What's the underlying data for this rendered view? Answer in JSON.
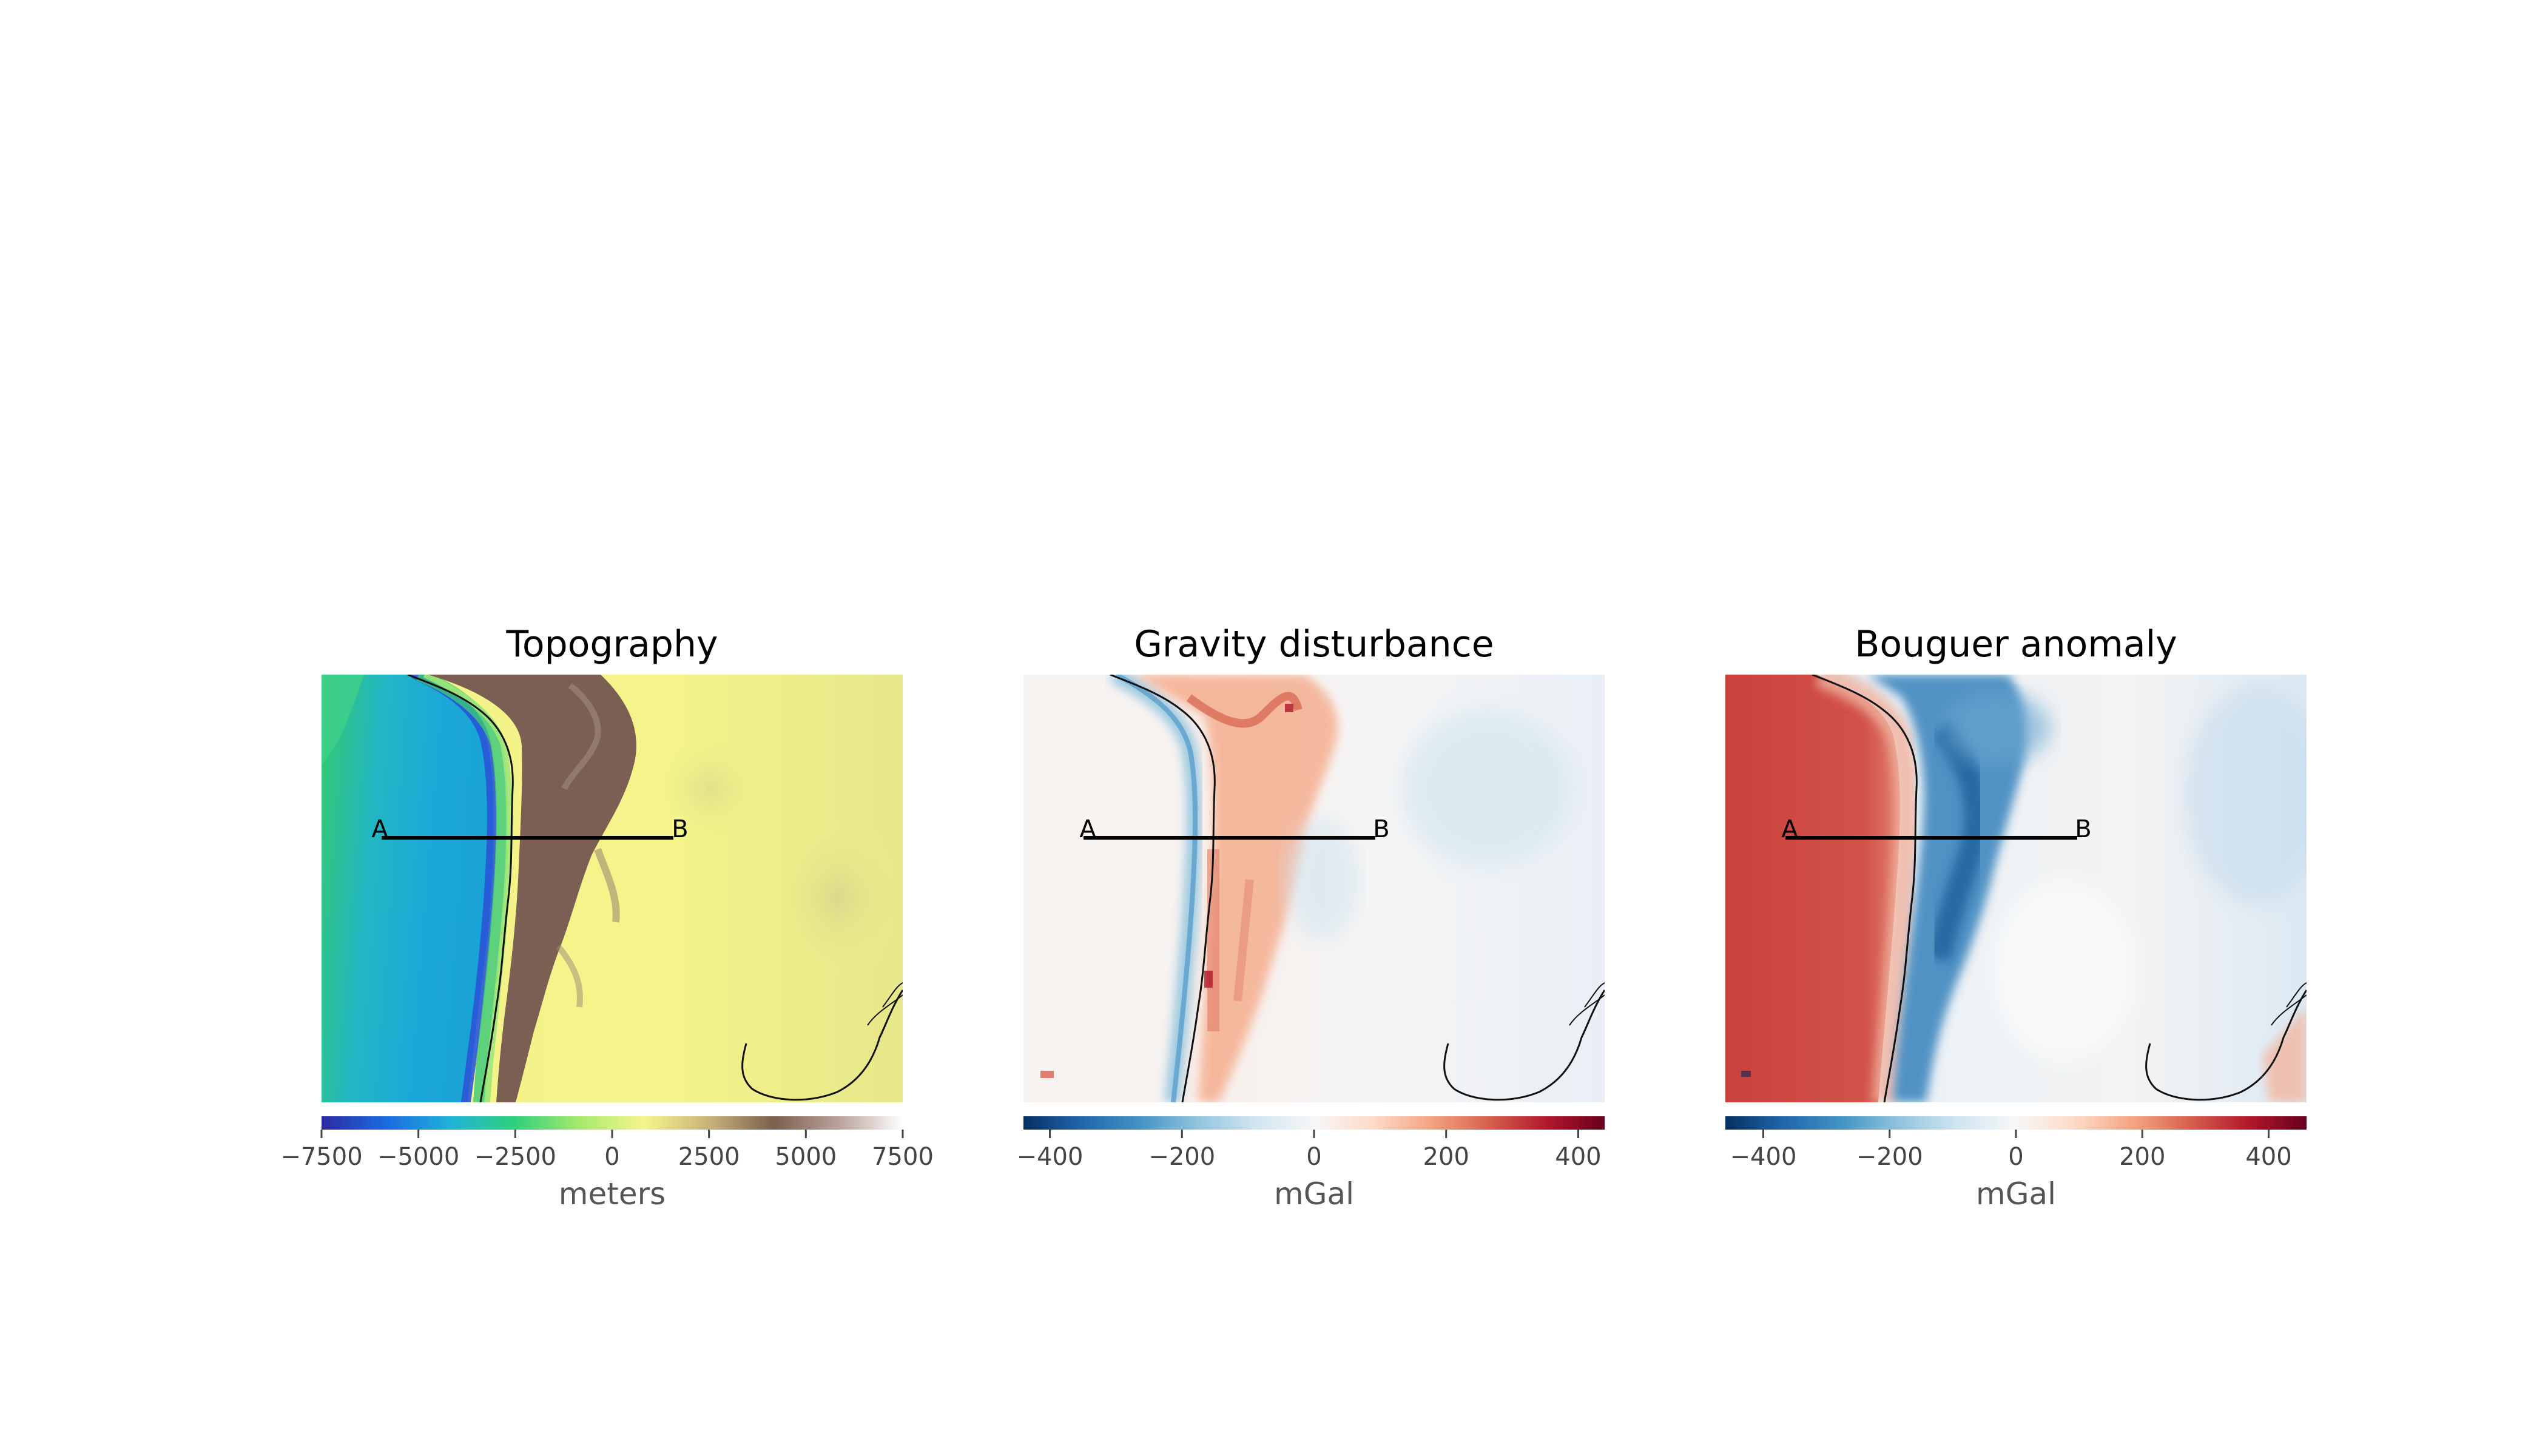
{
  "chart_data": [
    {
      "type": "heatmap",
      "title": "Topography",
      "colormap": "gist_earth-like (topographic)",
      "colorbar": {
        "label": "meters",
        "range": [
          -7500,
          7500
        ],
        "ticks": [
          -7500,
          -5000,
          -2500,
          0,
          2500,
          5000,
          7500
        ],
        "tick_labels": [
          "−7500",
          "−5000",
          "−2500",
          "0",
          "2500",
          "5000",
          "7500"
        ],
        "colors": [
          "#2d2aa0",
          "#1c6be0",
          "#1fb3d8",
          "#2fd07a",
          "#a8ea6e",
          "#f5f58a",
          "#c9b27a",
          "#7b5f4f",
          "#b9a19b",
          "#ffffff"
        ]
      },
      "profile": {
        "start_label": "A",
        "end_label": "B"
      },
      "grid": false
    },
    {
      "type": "heatmap",
      "title": "Gravity disturbance",
      "colormap": "RdBu_r",
      "colorbar": {
        "label": "mGal",
        "range": [
          -440,
          440
        ],
        "ticks": [
          -400,
          -200,
          0,
          200,
          400
        ],
        "tick_labels": [
          "−400",
          "−200",
          "0",
          "200",
          "400"
        ],
        "colors": [
          "#053061",
          "#2166ac",
          "#4393c3",
          "#92c5de",
          "#d1e5f0",
          "#f7f7f7",
          "#fddbc7",
          "#f4a582",
          "#d6604d",
          "#b2182b",
          "#67001f"
        ]
      },
      "profile": {
        "start_label": "A",
        "end_label": "B"
      },
      "grid": false
    },
    {
      "type": "heatmap",
      "title": "Bouguer anomaly",
      "colormap": "RdBu_r",
      "colorbar": {
        "label": "mGal",
        "range": [
          -460,
          460
        ],
        "ticks": [
          -400,
          -200,
          0,
          200,
          400
        ],
        "tick_labels": [
          "−400",
          "−200",
          "0",
          "200",
          "400"
        ],
        "colors": [
          "#053061",
          "#2166ac",
          "#4393c3",
          "#92c5de",
          "#d1e5f0",
          "#f7f7f7",
          "#fddbc7",
          "#f4a582",
          "#d6604d",
          "#b2182b",
          "#67001f"
        ]
      },
      "profile": {
        "start_label": "A",
        "end_label": "B"
      },
      "grid": false
    }
  ]
}
